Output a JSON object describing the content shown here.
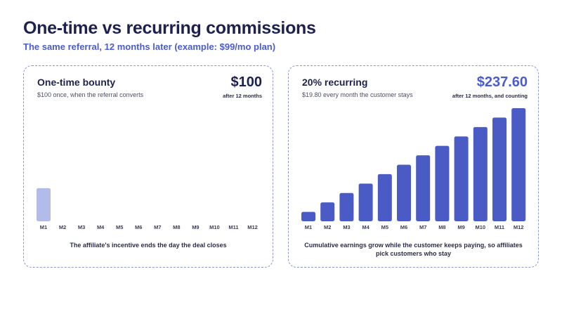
{
  "header": {
    "title": "One-time vs recurring commissions",
    "subtitle": "The same referral, 12 months later (example: $99/mo plan)"
  },
  "panels": [
    {
      "title": "One-time bounty",
      "description": "$100 once, when the referral converts",
      "total": "$100",
      "total_note": "after 12 months",
      "caption": "The affiliate's incentive ends the day the deal closes"
    },
    {
      "title": "20% recurring",
      "description": "$19.80 every month the customer stays",
      "total": "$237.60",
      "total_note": "after 12 months, and counting",
      "caption": "Cumulative earnings grow while the customer keeps paying, so affiliates pick customers who stay"
    }
  ],
  "chart_data": [
    {
      "type": "bar",
      "categories": [
        "M1",
        "M2",
        "M3",
        "M4",
        "M5",
        "M6",
        "M7",
        "M8",
        "M9",
        "M10",
        "M11",
        "M12"
      ],
      "values": [
        100,
        0,
        0,
        0,
        0,
        0,
        0,
        0,
        0,
        0,
        0,
        0
      ],
      "ylim": [
        0,
        390
      ],
      "grid": false,
      "colors": {
        "bar": "#b3bbe8"
      }
    },
    {
      "type": "bar",
      "categories": [
        "M1",
        "M2",
        "M3",
        "M4",
        "M5",
        "M6",
        "M7",
        "M8",
        "M9",
        "M10",
        "M11",
        "M12"
      ],
      "values": [
        19.8,
        39.6,
        59.4,
        79.2,
        99.0,
        118.8,
        138.6,
        158.4,
        178.2,
        198.0,
        217.8,
        237.6
      ],
      "ylim": [
        0,
        242
      ],
      "grid": false,
      "colors": {
        "bar": "#4a5bc6"
      }
    }
  ]
}
